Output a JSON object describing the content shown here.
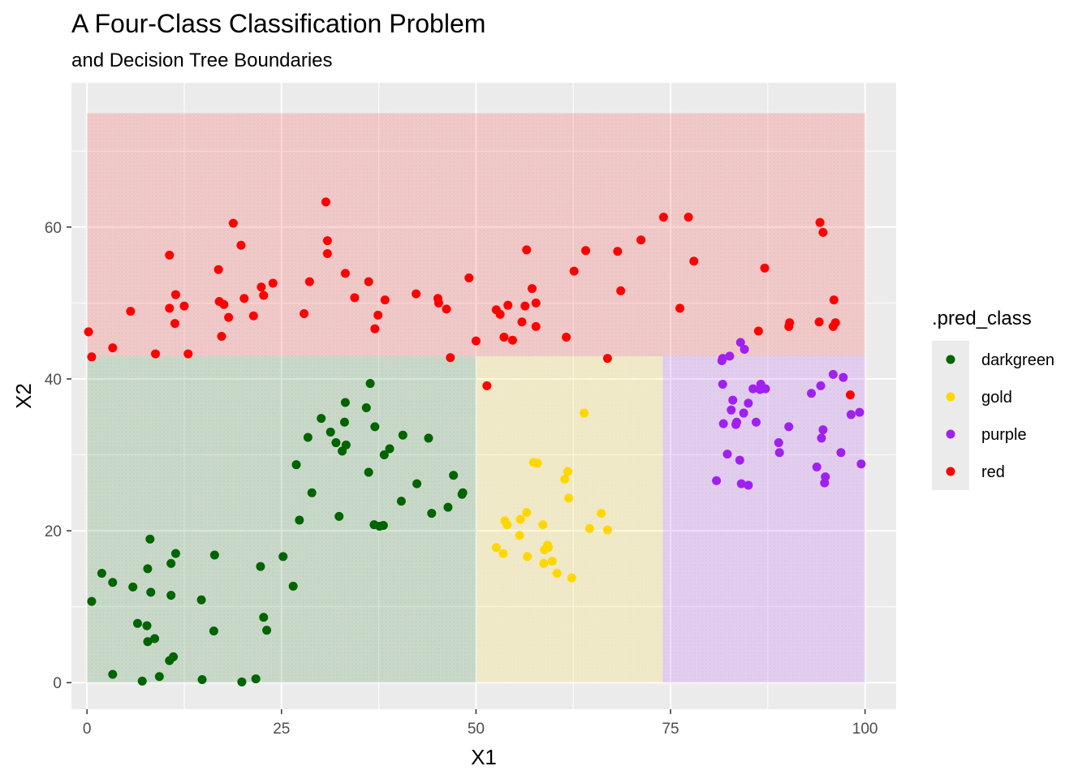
{
  "chart_data": {
    "type": "scatter",
    "title": "A Four-Class Classification Problem",
    "subtitle": "and Decision Tree Boundaries",
    "xlabel": "X1",
    "ylabel": "X2",
    "xlim": [
      -2,
      104
    ],
    "ylim": [
      -3.5,
      79
    ],
    "x_ticks": [
      0,
      25,
      50,
      75,
      100
    ],
    "y_ticks": [
      0,
      20,
      40,
      60
    ],
    "x_tick_labels": [
      "0",
      "25",
      "50",
      "75",
      "100"
    ],
    "y_tick_labels": [
      "0",
      "20",
      "40",
      "60"
    ],
    "grid": true,
    "legend": {
      "title": ".pred_class",
      "position": "right",
      "entries": [
        "darkgreen",
        "gold",
        "purple",
        "red"
      ]
    },
    "class_colors": {
      "darkgreen": "#006400",
      "gold": "#FFD700",
      "purple": "#A020F0",
      "red": "#FF0000"
    },
    "regions": [
      {
        "class": "red",
        "x": [
          0,
          100
        ],
        "y": [
          43,
          75
        ]
      },
      {
        "class": "darkgreen",
        "x": [
          0,
          50
        ],
        "y": [
          0,
          43
        ]
      },
      {
        "class": "gold",
        "x": [
          50,
          74
        ],
        "y": [
          0,
          43
        ]
      },
      {
        "class": "purple",
        "x": [
          74,
          100
        ],
        "y": [
          0,
          43
        ]
      }
    ],
    "series": [
      {
        "name": "red",
        "points": [
          [
            0.2,
            46.2
          ],
          [
            0.6,
            42.9
          ],
          [
            3.3,
            44.1
          ],
          [
            5.6,
            48.9
          ],
          [
            8.8,
            43.3
          ],
          [
            10.6,
            56.3
          ],
          [
            10.6,
            49.3
          ],
          [
            11.3,
            47.3
          ],
          [
            11.4,
            51.1
          ],
          [
            12.5,
            49.6
          ],
          [
            13.0,
            43.3
          ],
          [
            16.9,
            54.4
          ],
          [
            17.0,
            50.2
          ],
          [
            17.3,
            45.6
          ],
          [
            17.6,
            49.8
          ],
          [
            18.2,
            48.1
          ],
          [
            18.8,
            60.5
          ],
          [
            19.8,
            57.6
          ],
          [
            20.2,
            50.6
          ],
          [
            21.4,
            48.3
          ],
          [
            22.4,
            52.1
          ],
          [
            22.7,
            51.0
          ],
          [
            23.9,
            52.6
          ],
          [
            27.9,
            48.6
          ],
          [
            28.6,
            52.8
          ],
          [
            30.7,
            63.3
          ],
          [
            30.9,
            58.2
          ],
          [
            30.9,
            56.5
          ],
          [
            33.2,
            53.9
          ],
          [
            34.4,
            50.7
          ],
          [
            36.2,
            52.8
          ],
          [
            37.0,
            46.6
          ],
          [
            37.4,
            48.4
          ],
          [
            38.3,
            50.4
          ],
          [
            42.3,
            51.2
          ],
          [
            45.1,
            50.6
          ],
          [
            45.2,
            50.0
          ],
          [
            46.2,
            49.2
          ],
          [
            46.7,
            42.8
          ],
          [
            49.1,
            53.3
          ],
          [
            50.0,
            45.0
          ],
          [
            51.4,
            39.1
          ],
          [
            52.6,
            49.1
          ],
          [
            53.1,
            48.5
          ],
          [
            53.6,
            45.5
          ],
          [
            54.1,
            49.7
          ],
          [
            54.7,
            45.1
          ],
          [
            55.9,
            47.5
          ],
          [
            56.3,
            49.6
          ],
          [
            56.5,
            57.0
          ],
          [
            57.2,
            51.9
          ],
          [
            57.7,
            46.9
          ],
          [
            57.7,
            50.0
          ],
          [
            61.6,
            45.5
          ],
          [
            62.6,
            54.2
          ],
          [
            64.1,
            56.9
          ],
          [
            66.9,
            42.7
          ],
          [
            68.2,
            56.8
          ],
          [
            68.6,
            51.6
          ],
          [
            71.2,
            58.3
          ],
          [
            74.1,
            61.3
          ],
          [
            76.2,
            49.3
          ],
          [
            77.3,
            61.3
          ],
          [
            78.0,
            55.5
          ],
          [
            86.3,
            46.3
          ],
          [
            87.1,
            54.6
          ],
          [
            90.2,
            46.9
          ],
          [
            90.3,
            47.4
          ],
          [
            94.1,
            47.5
          ],
          [
            94.2,
            60.6
          ],
          [
            94.6,
            59.3
          ],
          [
            95.9,
            46.9
          ],
          [
            96.0,
            50.4
          ],
          [
            96.2,
            47.4
          ],
          [
            98.1,
            37.9
          ]
        ]
      },
      {
        "name": "darkgreen",
        "points": [
          [
            0.6,
            10.7
          ],
          [
            1.9,
            14.4
          ],
          [
            3.3,
            1.1
          ],
          [
            3.3,
            13.2
          ],
          [
            5.9,
            12.6
          ],
          [
            6.5,
            7.8
          ],
          [
            7.1,
            0.2
          ],
          [
            7.7,
            7.5
          ],
          [
            7.8,
            5.4
          ],
          [
            7.8,
            15.0
          ],
          [
            8.1,
            18.9
          ],
          [
            8.2,
            11.9
          ],
          [
            8.7,
            5.8
          ],
          [
            9.3,
            0.8
          ],
          [
            10.6,
            2.9
          ],
          [
            10.8,
            11.5
          ],
          [
            10.8,
            15.7
          ],
          [
            11.1,
            3.4
          ],
          [
            11.4,
            17.0
          ],
          [
            14.7,
            10.9
          ],
          [
            14.8,
            0.4
          ],
          [
            16.3,
            6.8
          ],
          [
            16.4,
            16.8
          ],
          [
            19.9,
            0.1
          ],
          [
            21.7,
            0.5
          ],
          [
            22.3,
            15.3
          ],
          [
            22.7,
            8.6
          ],
          [
            23.1,
            6.9
          ],
          [
            25.2,
            16.6
          ],
          [
            26.5,
            12.7
          ],
          [
            26.9,
            28.7
          ],
          [
            27.3,
            21.4
          ],
          [
            28.4,
            32.3
          ],
          [
            28.9,
            25.0
          ],
          [
            30.1,
            34.8
          ],
          [
            31.3,
            33.0
          ],
          [
            32.0,
            31.6
          ],
          [
            32.4,
            21.9
          ],
          [
            32.8,
            30.5
          ],
          [
            33.1,
            34.3
          ],
          [
            33.2,
            36.9
          ],
          [
            33.3,
            31.3
          ],
          [
            35.9,
            36.2
          ],
          [
            36.2,
            27.7
          ],
          [
            36.4,
            39.4
          ],
          [
            36.9,
            20.8
          ],
          [
            37.0,
            33.7
          ],
          [
            37.6,
            20.6
          ],
          [
            38.1,
            20.7
          ],
          [
            38.2,
            30.0
          ],
          [
            38.9,
            30.8
          ],
          [
            40.4,
            23.9
          ],
          [
            40.6,
            32.6
          ],
          [
            42.4,
            26.2
          ],
          [
            43.9,
            32.2
          ],
          [
            44.3,
            22.3
          ],
          [
            46.4,
            23.1
          ],
          [
            47.1,
            27.3
          ],
          [
            48.2,
            24.8
          ],
          [
            48.3,
            25.0
          ]
        ]
      },
      {
        "name": "gold",
        "points": [
          [
            52.6,
            17.8
          ],
          [
            53.5,
            17.0
          ],
          [
            53.7,
            21.3
          ],
          [
            54.0,
            20.8
          ],
          [
            55.6,
            19.4
          ],
          [
            55.7,
            21.5
          ],
          [
            56.5,
            22.4
          ],
          [
            56.6,
            16.6
          ],
          [
            57.4,
            29.0
          ],
          [
            57.9,
            28.9
          ],
          [
            58.6,
            20.8
          ],
          [
            58.7,
            15.7
          ],
          [
            58.8,
            17.5
          ],
          [
            59.2,
            18.1
          ],
          [
            59.3,
            17.8
          ],
          [
            59.8,
            16.0
          ],
          [
            60.4,
            14.4
          ],
          [
            61.4,
            26.8
          ],
          [
            61.8,
            27.8
          ],
          [
            61.9,
            24.3
          ],
          [
            62.3,
            13.8
          ],
          [
            63.9,
            35.5
          ],
          [
            64.6,
            20.3
          ],
          [
            66.1,
            22.3
          ],
          [
            66.9,
            20.1
          ]
        ]
      },
      {
        "name": "purple",
        "points": [
          [
            80.9,
            26.6
          ],
          [
            81.6,
            42.4
          ],
          [
            81.7,
            42.7
          ],
          [
            81.7,
            39.3
          ],
          [
            81.8,
            34.1
          ],
          [
            82.3,
            30.1
          ],
          [
            82.6,
            43.0
          ],
          [
            82.8,
            35.9
          ],
          [
            83.0,
            37.2
          ],
          [
            83.4,
            34.0
          ],
          [
            83.5,
            34.3
          ],
          [
            83.9,
            29.3
          ],
          [
            84.0,
            44.8
          ],
          [
            84.1,
            26.2
          ],
          [
            84.4,
            35.5
          ],
          [
            84.5,
            43.9
          ],
          [
            85.0,
            26.0
          ],
          [
            85.0,
            36.8
          ],
          [
            85.6,
            38.7
          ],
          [
            86.0,
            34.3
          ],
          [
            86.5,
            38.6
          ],
          [
            86.6,
            39.3
          ],
          [
            87.2,
            38.7
          ],
          [
            88.9,
            31.6
          ],
          [
            89.0,
            30.3
          ],
          [
            90.2,
            33.7
          ],
          [
            93.1,
            38.1
          ],
          [
            93.8,
            28.4
          ],
          [
            94.3,
            39.1
          ],
          [
            94.4,
            32.2
          ],
          [
            94.6,
            33.3
          ],
          [
            94.8,
            26.3
          ],
          [
            94.9,
            27.1
          ],
          [
            95.9,
            40.6
          ],
          [
            96.9,
            30.3
          ],
          [
            97.2,
            40.2
          ],
          [
            98.2,
            35.3
          ],
          [
            99.3,
            35.6
          ],
          [
            99.5,
            28.8
          ]
        ]
      }
    ]
  }
}
